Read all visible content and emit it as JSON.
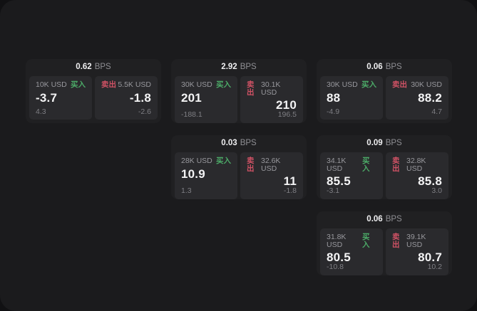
{
  "labels": {
    "bps_unit": "BPS",
    "buy": "买入",
    "sell": "卖出"
  },
  "colors": {
    "buy_green": "#4cab68",
    "sell_red": "#d05265",
    "window_background": "#1b1b1d",
    "card_background": "#202022",
    "panel_background": "#2a2a2d"
  },
  "cards": [
    {
      "row": 1,
      "col": 1,
      "spread_bps": "0.62",
      "buy": {
        "size": "10K USD",
        "price": "-3.7",
        "sub": "4.3"
      },
      "sell": {
        "size": "5.5K USD",
        "price": "-1.8",
        "sub": "-2.6"
      }
    },
    {
      "row": 1,
      "col": 2,
      "spread_bps": "2.92",
      "buy": {
        "size": "30K USD",
        "price": "201",
        "sub": "-188.1"
      },
      "sell": {
        "size": "30.1K USD",
        "price": "210",
        "sub": "196.5"
      }
    },
    {
      "row": 1,
      "col": 3,
      "spread_bps": "0.06",
      "buy": {
        "size": "30K USD",
        "price": "88",
        "sub": "-4.9"
      },
      "sell": {
        "size": "30K USD",
        "price": "88.2",
        "sub": "4.7"
      }
    },
    {
      "row": 2,
      "col": 2,
      "spread_bps": "0.03",
      "buy": {
        "size": "28K USD",
        "price": "10.9",
        "sub": "1.3"
      },
      "sell": {
        "size": "32.6K USD",
        "price": "11",
        "sub": "-1.8"
      }
    },
    {
      "row": 2,
      "col": 3,
      "spread_bps": "0.09",
      "buy": {
        "size": "34.1K USD",
        "price": "85.5",
        "sub": "-3.1"
      },
      "sell": {
        "size": "32.8K USD",
        "price": "85.8",
        "sub": "3.0"
      }
    },
    {
      "row": 3,
      "col": 3,
      "spread_bps": "0.06",
      "buy": {
        "size": "31.8K USD",
        "price": "80.5",
        "sub": "-10.8"
      },
      "sell": {
        "size": "39.1K USD",
        "price": "80.7",
        "sub": "10.2"
      }
    }
  ]
}
